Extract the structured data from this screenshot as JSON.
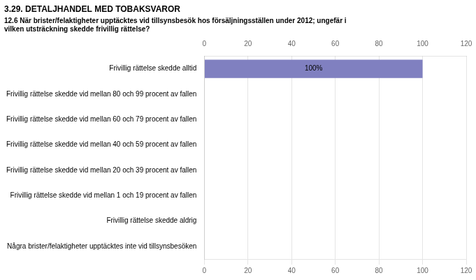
{
  "chart_data": {
    "type": "bar",
    "orientation": "horizontal",
    "title": "3.29. DETALJHANDEL MED TOBAKSVAROR",
    "subtitle": "12.6 När brister/felaktigheter upptäcktes vid tillsynsbesök hos försäljningsställen under 2012; ungefär i\nvilken utsträckning skedde frivillig rättelse?",
    "categories": [
      "Frivillig rättelse skedde alltid",
      "Frivillig rättelse skedde vid mellan 80 och 99 procent av fallen",
      "Frivillig rättelse skedde vid mellan 60 och 79 procent av fallen",
      "Frivillig rättelse skedde vid mellan 40 och 59 procent av fallen",
      "Frivillig rättelse skedde vid mellan 20 och 39 procent av fallen",
      "Frivillig rättelse skedde vid mellan 1 och 19 procent av fallen",
      "Frivillig rättelse skedde aldrig",
      "Några brister/felaktigheter upptäcktes inte vid tillsynsbesöken"
    ],
    "values": [
      100,
      0,
      0,
      0,
      0,
      0,
      0,
      0
    ],
    "value_labels": [
      "100%",
      null,
      null,
      null,
      null,
      null,
      null,
      null
    ],
    "data_labels": true,
    "color": "#8080c0",
    "xlim": [
      0,
      120
    ],
    "xticks": [
      0,
      20,
      40,
      60,
      80,
      100,
      120
    ],
    "grid": true
  }
}
